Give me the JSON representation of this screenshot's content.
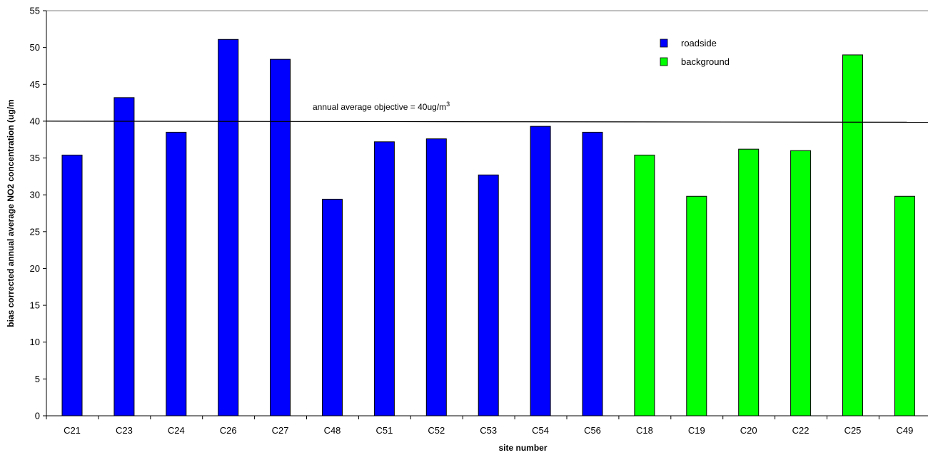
{
  "chart_data": {
    "type": "bar",
    "title": "",
    "xlabel": "site number",
    "ylabel": "bias corrected annual average NO2 concentration (ug/m",
    "ylim": [
      0,
      55
    ],
    "yticks": [
      0,
      5,
      10,
      15,
      20,
      25,
      30,
      35,
      40,
      45,
      50,
      55
    ],
    "grid": false,
    "legend_position": "top-right",
    "categories": [
      "C21",
      "C23",
      "C24",
      "C26",
      "C27",
      "C48",
      "C51",
      "C52",
      "C53",
      "C54",
      "C56",
      "C18",
      "C19",
      "C20",
      "C22",
      "C25",
      "C49"
    ],
    "series": [
      {
        "name": "roadside",
        "color": "#0000ff",
        "values": [
          35.4,
          43.2,
          38.5,
          51.1,
          48.4,
          29.4,
          37.2,
          37.6,
          32.7,
          39.3,
          38.5,
          null,
          null,
          null,
          null,
          null,
          null
        ]
      },
      {
        "name": "background",
        "color": "#00ff00",
        "values": [
          null,
          null,
          null,
          null,
          null,
          null,
          null,
          null,
          null,
          null,
          null,
          35.4,
          29.8,
          36.2,
          36.0,
          49.0,
          29.8
        ]
      }
    ],
    "reference_line": {
      "value": 40,
      "label_text": "annual average objective = 40ug/m",
      "label_superscript": "3"
    }
  }
}
